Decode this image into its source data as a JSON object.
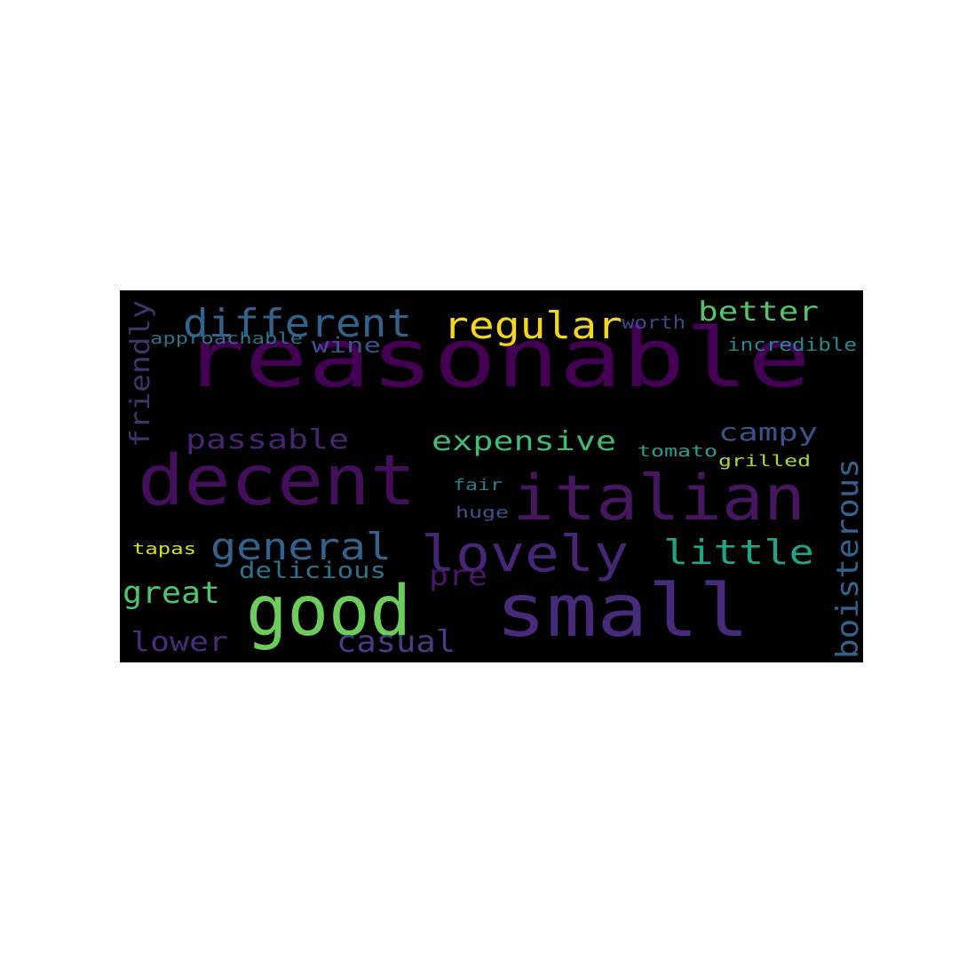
{
  "words": [
    {
      "text": "reasonable",
      "color": "#440154",
      "rotated": false
    },
    {
      "text": "decent",
      "color": "#440f5a",
      "rotated": false
    },
    {
      "text": "italian",
      "color": "#46165f",
      "rotated": false
    },
    {
      "text": "small",
      "color": "#472a7a",
      "rotated": false
    },
    {
      "text": "good",
      "color": "#6ccd5a",
      "rotated": false
    },
    {
      "text": "lovely",
      "color": "#482677",
      "rotated": false
    },
    {
      "text": "different",
      "color": "#33638d",
      "rotated": false
    },
    {
      "text": "regular",
      "color": "#f2d61f",
      "rotated": false
    },
    {
      "text": "general",
      "color": "#33638d",
      "rotated": false
    },
    {
      "text": "little",
      "color": "#20a386",
      "rotated": false
    },
    {
      "text": "boisterous",
      "color": "#33638d",
      "rotated": true
    },
    {
      "text": "friendly",
      "color": "#3e356b",
      "rotated": true
    },
    {
      "text": "passable",
      "color": "#482475",
      "rotated": false
    },
    {
      "text": "expensive",
      "color": "#3fbc73",
      "rotated": false
    },
    {
      "text": "better",
      "color": "#52c569",
      "rotated": false
    },
    {
      "text": "campy",
      "color": "#3b528b",
      "rotated": false
    },
    {
      "text": "great",
      "color": "#52c569",
      "rotated": false
    },
    {
      "text": "lower",
      "color": "#472d7b",
      "rotated": false
    },
    {
      "text": "casual",
      "color": "#433e85",
      "rotated": false
    },
    {
      "text": "delicious",
      "color": "#2c728e",
      "rotated": false
    },
    {
      "text": "pre",
      "color": "#481769",
      "rotated": false
    },
    {
      "text": "wine",
      "color": "#3b528b",
      "rotated": false
    },
    {
      "text": "approachable",
      "color": "#2c728e",
      "rotated": false
    },
    {
      "text": "worth",
      "color": "#3e4a89",
      "rotated": false
    },
    {
      "text": "incredible",
      "color": "#23898e",
      "rotated": false
    },
    {
      "text": "tomato",
      "color": "#2a9d8f",
      "rotated": false
    },
    {
      "text": "grilled",
      "color": "#a5db36",
      "rotated": false
    },
    {
      "text": "fair",
      "color": "#287c8e",
      "rotated": false
    },
    {
      "text": "huge",
      "color": "#3b528b",
      "rotated": false
    },
    {
      "text": "tapas",
      "color": "#d8e219",
      "rotated": false
    }
  ]
}
